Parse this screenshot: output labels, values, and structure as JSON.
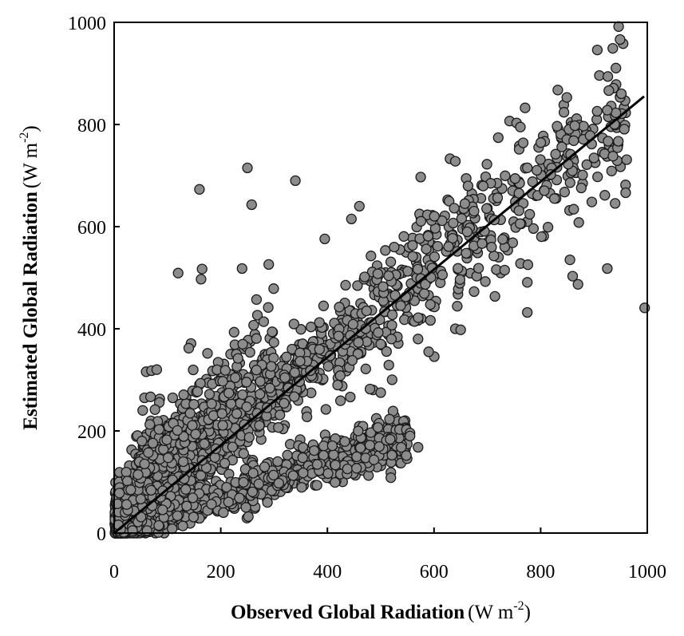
{
  "chart_data": {
    "type": "scatter",
    "title": "",
    "xlabel": {
      "bold": "Observed Global Radiation",
      "unit": "(W m",
      "sup": "-2",
      "close": ")"
    },
    "ylabel": {
      "bold": "Estimated Global Radiation",
      "unit": "(W m",
      "sup": "-2",
      "close": ")"
    },
    "xlim": [
      0,
      1000
    ],
    "ylim": [
      0,
      1000
    ],
    "x_ticks": [
      "0",
      "200",
      "400",
      "600",
      "800",
      "1000"
    ],
    "y_ticks": [
      "0",
      "200",
      "400",
      "600",
      "800",
      "1000"
    ],
    "grid": false,
    "legend": "none",
    "marker_fill": "#8c8c8c",
    "marker_edge": "#1a1a1a",
    "fit_line": {
      "x": [
        0,
        1000
      ],
      "y": [
        0,
        855
      ]
    },
    "outliers": [
      [
        250,
        715
      ],
      [
        340,
        690
      ],
      [
        160,
        673
      ],
      [
        258,
        643
      ],
      [
        165,
        517
      ],
      [
        163,
        497
      ],
      [
        120,
        509
      ],
      [
        240,
        518
      ],
      [
        290,
        526
      ],
      [
        395,
        576
      ],
      [
        460,
        640
      ],
      [
        445,
        615
      ],
      [
        575,
        697
      ],
      [
        630,
        733
      ],
      [
        640,
        728
      ],
      [
        755,
        803
      ],
      [
        762,
        795
      ],
      [
        925,
        828
      ],
      [
        855,
        535
      ],
      [
        860,
        503
      ],
      [
        870,
        487
      ],
      [
        775,
        491
      ],
      [
        775,
        432
      ],
      [
        925,
        518
      ],
      [
        995,
        441
      ],
      [
        555,
        196
      ],
      [
        555,
        190
      ],
      [
        570,
        168
      ],
      [
        500,
        275
      ],
      [
        480,
        282
      ],
      [
        140,
        362
      ],
      [
        60,
        316
      ],
      [
        70,
        318
      ],
      [
        80,
        320
      ],
      [
        590,
        355
      ],
      [
        570,
        380
      ],
      [
        640,
        400
      ],
      [
        650,
        398
      ],
      [
        520,
        380
      ],
      [
        500,
        370
      ]
    ]
  }
}
